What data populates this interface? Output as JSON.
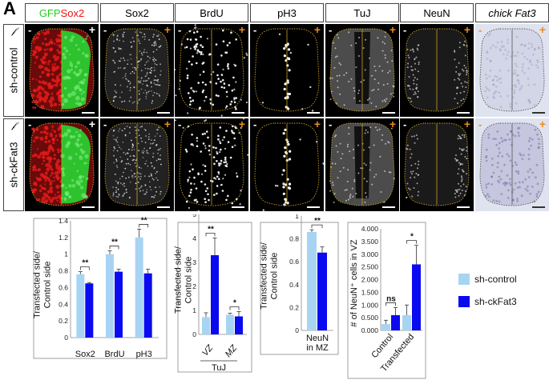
{
  "figure": {
    "panel_letter": "A",
    "headers": [
      {
        "parts": [
          {
            "text": "GFP",
            "color": "#22cc22"
          },
          {
            "text": " Sox2",
            "color": "#ee1111"
          }
        ]
      },
      {
        "parts": [
          {
            "text": "Sox2",
            "color": "#000000"
          }
        ]
      },
      {
        "parts": [
          {
            "text": "BrdU",
            "color": "#000000"
          }
        ]
      },
      {
        "parts": [
          {
            "text": "pH3",
            "color": "#000000"
          }
        ]
      },
      {
        "parts": [
          {
            "text": "TuJ",
            "color": "#000000"
          }
        ]
      },
      {
        "parts": [
          {
            "text": "NeuN",
            "color": "#000000"
          }
        ]
      },
      {
        "parts": [
          {
            "text": "chick Fat3",
            "color": "#000000",
            "italic": true
          }
        ]
      }
    ],
    "rows": [
      {
        "label": "sh-control",
        "icon": "electroporation-icon"
      },
      {
        "label": "sh-ckFat3",
        "icon": "electroporation-icon"
      }
    ],
    "side_marks": {
      "minus": "-",
      "plus": "+"
    },
    "colors": {
      "control": "#a8d4f4",
      "knockdown": "#0a0af0",
      "orange_mark": "#f08a1a"
    },
    "legend": [
      {
        "label": "sh-control",
        "color": "#a8d4f4"
      },
      {
        "label": "sh-ckFat3",
        "color": "#0a0af0"
      }
    ]
  },
  "chart_data": [
    {
      "type": "bar",
      "ylabel": "Transfected side/\nControl side",
      "ylim": [
        0,
        1.4
      ],
      "yticks": [
        "0",
        "0.2",
        "0.4",
        "0.6",
        "0.8",
        "1",
        "1.2",
        "1.4"
      ],
      "categories": [
        "Sox2",
        "BrdU",
        "pH3"
      ],
      "series": [
        {
          "name": "sh-control",
          "values": [
            0.76,
            1.0,
            1.2
          ],
          "errors": [
            0.03,
            0.04,
            0.1
          ]
        },
        {
          "name": "sh-ckFat3",
          "values": [
            0.65,
            0.79,
            0.77
          ],
          "errors": [
            0.01,
            0.03,
            0.05
          ]
        }
      ],
      "significance": [
        "**",
        "**",
        "**"
      ]
    },
    {
      "type": "bar",
      "ylabel": "Transfected side/\nControl side",
      "ylim": [
        0,
        5
      ],
      "yticks": [
        "0",
        "1",
        "2",
        "3",
        "4",
        "5"
      ],
      "categories": [
        "VZ",
        "MZ"
      ],
      "group_label": "TuJ",
      "series": [
        {
          "name": "sh-control",
          "values": [
            0.72,
            0.82
          ],
          "errors": [
            0.18,
            0.06
          ]
        },
        {
          "name": "sh-ckFat3",
          "values": [
            3.3,
            0.75
          ],
          "errors": [
            0.72,
            0.2
          ]
        }
      ],
      "significance": [
        "**",
        "*"
      ]
    },
    {
      "type": "bar",
      "ylabel": "Transfected side/\nControl side",
      "ylim": [
        0,
        1
      ],
      "yticks": [
        "0",
        "0.2",
        "0.4",
        "0.6",
        "0.8",
        "1"
      ],
      "categories": [
        "NeuN\nin MZ"
      ],
      "series": [
        {
          "name": "sh-control",
          "values": [
            0.86
          ],
          "errors": [
            0.02
          ]
        },
        {
          "name": "sh-ckFat3",
          "values": [
            0.68
          ],
          "errors": [
            0.05
          ]
        }
      ],
      "significance": [
        "**"
      ]
    },
    {
      "type": "bar",
      "ylabel": "# of NeuN⁺ cells in VZ",
      "ylim": [
        0,
        4
      ],
      "yticks": [
        "0.000",
        "0.500",
        "1.000",
        "1.500",
        "2.000",
        "2.500",
        "3.000",
        "3.500",
        "4.000"
      ],
      "categories": [
        "Control",
        "Transfected"
      ],
      "series": [
        {
          "name": "sh-control",
          "values": [
            0.25,
            0.6
          ],
          "errors": [
            0.15,
            0.4
          ]
        },
        {
          "name": "sh-ckFat3",
          "values": [
            0.6,
            2.6
          ],
          "errors": [
            0.3,
            0.75
          ]
        }
      ],
      "significance": [
        "ns",
        "*"
      ]
    }
  ]
}
